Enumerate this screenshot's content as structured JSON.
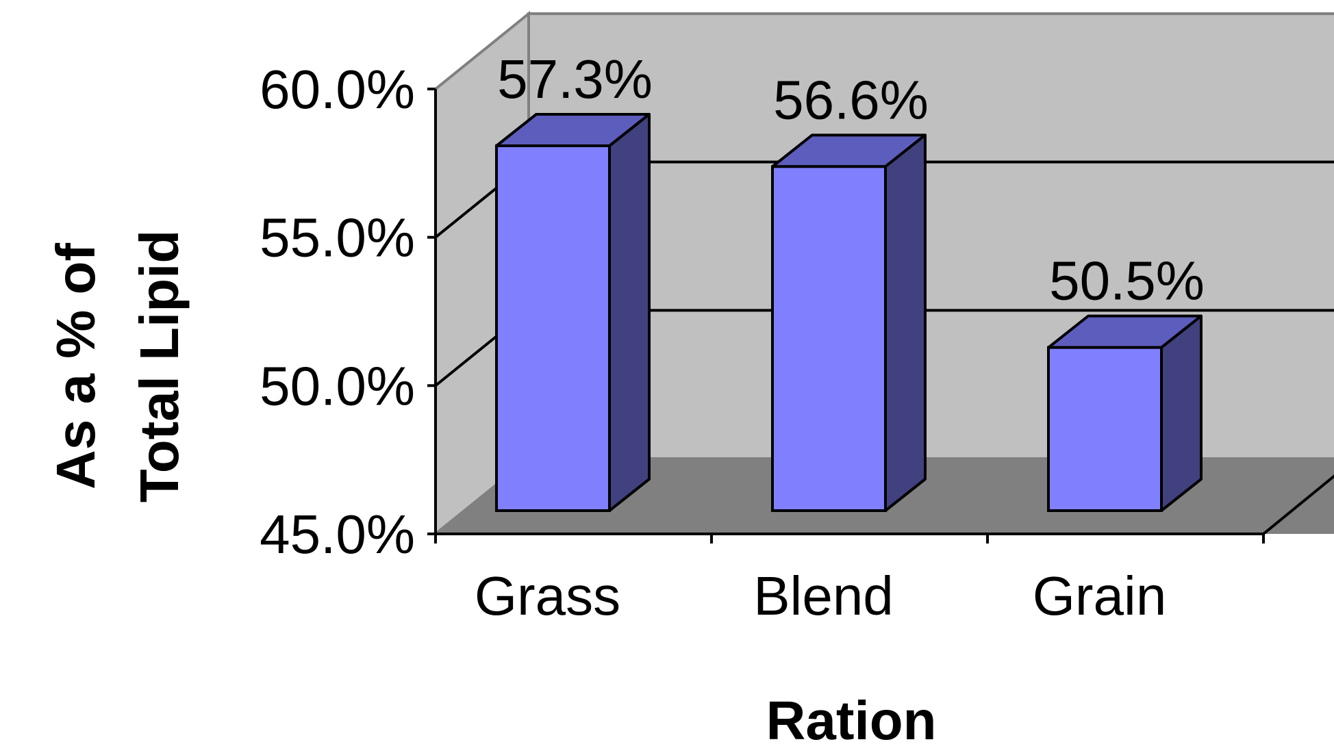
{
  "chart_data": {
    "type": "bar",
    "style": "3d-column",
    "categories": [
      "Grass",
      "Blend",
      "Grain"
    ],
    "values": [
      57.3,
      56.6,
      50.5
    ],
    "data_labels": [
      "57.3%",
      "56.6%",
      "50.5%"
    ],
    "xlabel": "Ration",
    "ylabel_lines": [
      "As a % of",
      "Total Lipid"
    ],
    "ylim": [
      45.0,
      60.0
    ],
    "yticks": [
      45.0,
      50.0,
      55.0,
      60.0
    ],
    "ytick_labels": [
      "45.0%",
      "50.0%",
      "55.0%",
      "60.0%"
    ],
    "grid": true,
    "legend": "none",
    "colors": {
      "bar_front": "#8080ff",
      "bar_top": "#5d5dbd",
      "bar_side": "#414180",
      "back_wall": "#c0c0c0",
      "side_wall": "#c0c0c0",
      "floor": "#808080"
    }
  }
}
